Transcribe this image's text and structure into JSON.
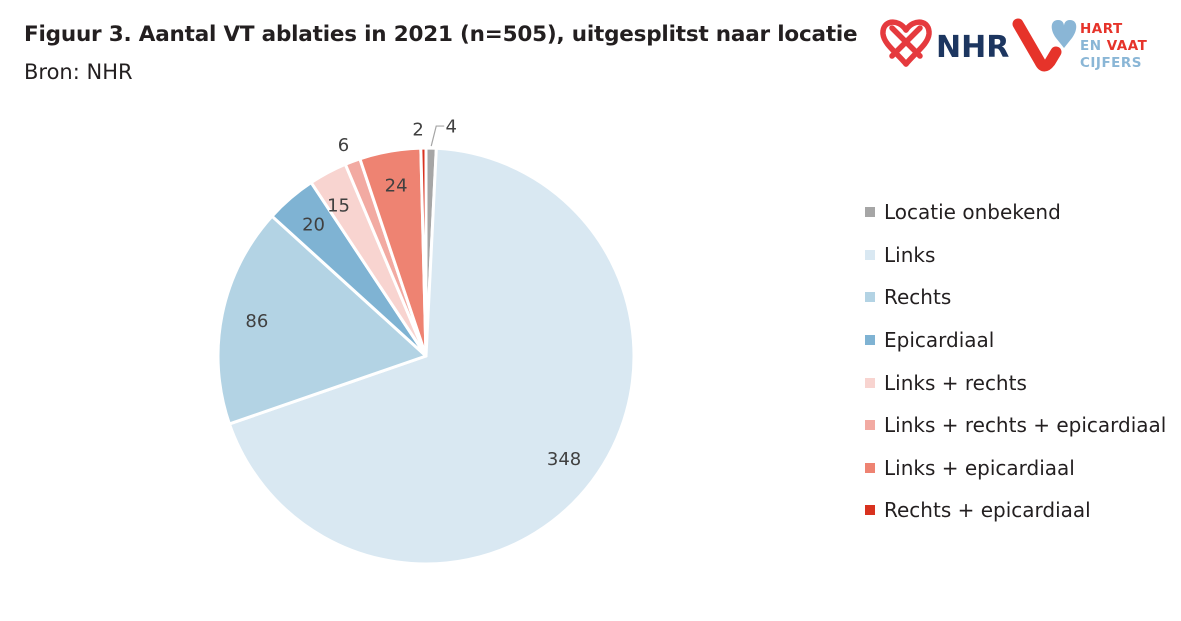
{
  "header": {
    "title": "Figuur 3. Aantal VT ablaties in 2021 (n=505), uitgesplitst naar locatie",
    "subtitle": "Bron: NHR"
  },
  "logos": {
    "nhr": {
      "text": "NHR",
      "icon": "heart-knot-icon"
    },
    "hartenvaatcijfers": {
      "line1": "HART",
      "line2a": "EN",
      "line2b": "VAAT",
      "line3": "CIJFERS",
      "icon": "heart-v-icon"
    }
  },
  "colors": {
    "text": "#231f20",
    "nhr_red": "#e53a3e",
    "nhr_blue": "#1d3660",
    "hvc_red": "#e6332a",
    "hvc_blue": "#8ab6d6"
  },
  "chart_data": {
    "type": "pie",
    "title": "Figuur 3. Aantal VT ablaties in 2021 (n=505), uitgesplitst naar locatie",
    "total": 505,
    "legend_position": "right",
    "slices": [
      {
        "label": "Locatie onbekend",
        "value": 4,
        "color": "#a6a6a6"
      },
      {
        "label": "Links",
        "value": 348,
        "color": "#d9e8f2"
      },
      {
        "label": "Rechts",
        "value": 86,
        "color": "#b3d3e4"
      },
      {
        "label": "Epicardiaal",
        "value": 20,
        "color": "#7fb3d3"
      },
      {
        "label": "Links + rechts",
        "value": 15,
        "color": "#f8d4d0"
      },
      {
        "label": "Links + rechts + epicardiaal",
        "value": 6,
        "color": "#f2aaa2"
      },
      {
        "label": "Links + epicardiaal",
        "value": 24,
        "color": "#ee8372"
      },
      {
        "label": "Rechts + epicardiaal",
        "value": 2,
        "color": "#d8321f"
      }
    ]
  }
}
